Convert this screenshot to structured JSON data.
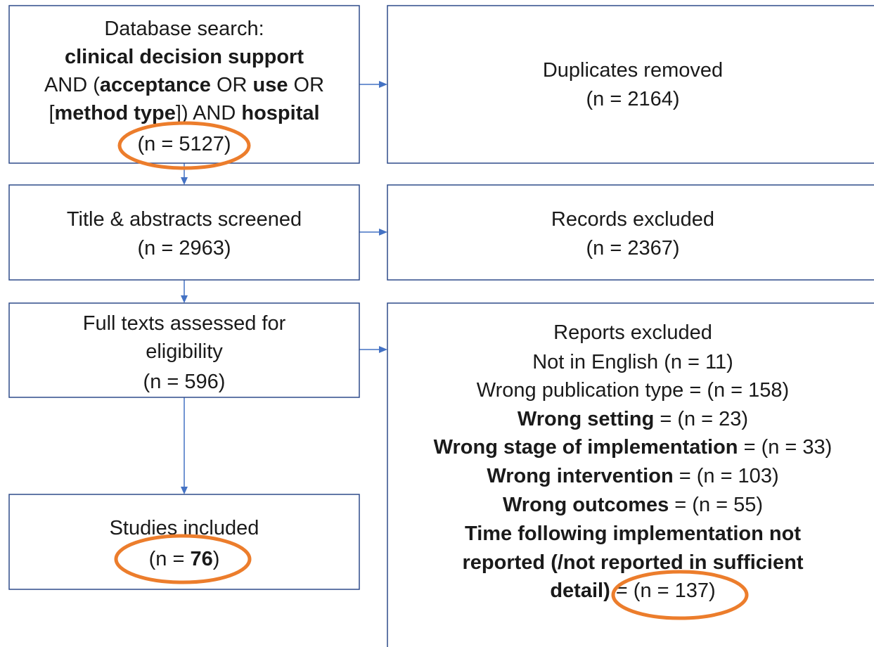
{
  "nodes": [
    {
      "lines": [
        [
          {
            "text": "Database search:"
          }
        ],
        [
          {
            "text": "clinical decision support",
            "bold": true
          }
        ],
        [
          {
            "text": "AND ("
          },
          {
            "text": "acceptance",
            "bold": true
          },
          {
            "text": " OR "
          },
          {
            "text": "use",
            "bold": true
          },
          {
            "text": " OR"
          }
        ],
        [
          {
            "text": "["
          },
          {
            "text": "method type",
            "bold": true
          },
          {
            "text": "]) AND "
          },
          {
            "text": "hospital",
            "bold": true
          }
        ],
        [
          {
            "text": "(n = 5127)"
          }
        ]
      ]
    },
    {
      "lines": [
        [
          {
            "text": "Duplicates removed"
          }
        ],
        [
          {
            "text": "(n = 2164)"
          }
        ]
      ]
    },
    {
      "lines": [
        [
          {
            "text": "Title & abstracts screened"
          }
        ],
        [
          {
            "text": "(n = 2963)"
          }
        ]
      ]
    },
    {
      "lines": [
        [
          {
            "text": "Records excluded"
          }
        ],
        [
          {
            "text": "(n = 2367)"
          }
        ]
      ]
    },
    {
      "lines": [
        [
          {
            "text": "Full texts assessed for"
          }
        ],
        [
          {
            "text": "eligibility"
          }
        ],
        [
          {
            "text": "(n = 596)"
          }
        ]
      ]
    },
    {
      "lines": [
        [
          {
            "text": "Reports excluded"
          }
        ],
        [
          {
            "text": "Not in English (n = 11)"
          }
        ],
        [
          {
            "text": "Wrong publication type = (n = 158)"
          }
        ],
        [
          {
            "text": "Wrong setting",
            "bold": true
          },
          {
            "text": " = (n = 23)"
          }
        ],
        [
          {
            "text": "Wrong stage of implementation",
            "bold": true
          },
          {
            "text": " = (n = 33)"
          }
        ],
        [
          {
            "text": "Wrong intervention",
            "bold": true
          },
          {
            "text": " = (n = 103)"
          }
        ],
        [
          {
            "text": "Wrong outcomes",
            "bold": true
          },
          {
            "text": " = (n = 55)"
          }
        ],
        [
          {
            "text": "Time following implementation not",
            "bold": true
          }
        ],
        [
          {
            "text": "reported (/not reported in sufficient",
            "bold": true
          }
        ],
        [
          {
            "text": "detail)",
            "bold": true
          },
          {
            "text": " = (n = 137)"
          }
        ]
      ]
    },
    {
      "lines": [
        [
          {
            "text": "Studies included"
          }
        ],
        [
          {
            "text": "(n = "
          },
          {
            "text": "76",
            "bold": true
          },
          {
            "text": ")"
          }
        ]
      ]
    }
  ]
}
